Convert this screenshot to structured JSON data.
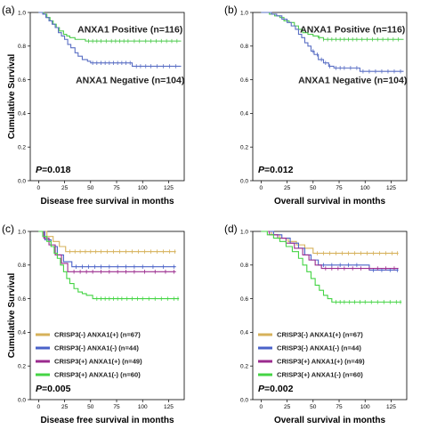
{
  "chart_data": [
    {
      "type": "line",
      "panel_label": "(a)",
      "xlabel": "Disease free survival in months",
      "ylabel": "Cumulative Survival",
      "xlim": [
        -8,
        140
      ],
      "ylim": [
        0,
        1.0
      ],
      "xticks": [
        "0",
        "25",
        "50",
        "75",
        "100",
        "125"
      ],
      "yticks": [
        "0.0",
        "0.2",
        "0.4",
        "0.6",
        "0.8",
        "1.0"
      ],
      "p_value": "=0.018",
      "legend_style": "inline",
      "series": [
        {
          "name": "ANXA1 Positive (n=116)",
          "color": "#4ecb4e",
          "x": [
            0,
            5,
            8,
            11,
            14,
            17,
            20,
            24,
            27,
            30,
            35,
            40,
            45,
            137
          ],
          "y": [
            1.0,
            0.99,
            0.97,
            0.95,
            0.93,
            0.91,
            0.89,
            0.87,
            0.86,
            0.85,
            0.84,
            0.84,
            0.83,
            0.83
          ],
          "censor": [
            48,
            52,
            56,
            60,
            65,
            70,
            74,
            78,
            82,
            86,
            92,
            97,
            103,
            108,
            113,
            118,
            123,
            128,
            133
          ]
        },
        {
          "name": "ANXA1 Negative (n=104)",
          "color": "#5a6fc4",
          "x": [
            0,
            4,
            7,
            10,
            13,
            16,
            19,
            22,
            25,
            28,
            31,
            35,
            38,
            42,
            47,
            50,
            90,
            137
          ],
          "y": [
            1.0,
            0.99,
            0.97,
            0.95,
            0.93,
            0.91,
            0.88,
            0.86,
            0.84,
            0.81,
            0.79,
            0.76,
            0.74,
            0.72,
            0.71,
            0.7,
            0.68,
            0.68
          ],
          "censor": [
            52,
            56,
            60,
            64,
            68,
            72,
            76,
            80,
            84,
            88,
            94,
            98,
            103,
            108,
            114,
            120,
            126,
            132
          ]
        }
      ]
    },
    {
      "type": "line",
      "panel_label": "(b)",
      "xlabel": "Overall survival in months",
      "ylabel": "",
      "xlim": [
        -8,
        140
      ],
      "ylim": [
        0,
        1.0
      ],
      "xticks": [
        "0",
        "25",
        "50",
        "75",
        "100",
        "125"
      ],
      "yticks": [
        "0.0",
        "0.2",
        "0.4",
        "0.6",
        "0.8",
        "1.0"
      ],
      "p_value": "=0.012",
      "legend_style": "inline",
      "series": [
        {
          "name": "ANXA1 Positive (n=116)",
          "color": "#4ecb4e",
          "x": [
            0,
            8,
            13,
            18,
            22,
            27,
            32,
            36,
            40,
            45,
            50,
            55,
            60,
            137
          ],
          "y": [
            1.0,
            0.99,
            0.98,
            0.97,
            0.95,
            0.94,
            0.92,
            0.9,
            0.88,
            0.87,
            0.86,
            0.85,
            0.84,
            0.84
          ],
          "censor": [
            56,
            60,
            64,
            68,
            72,
            76,
            80,
            84,
            88,
            92,
            97,
            102,
            107,
            112,
            117,
            122,
            127,
            132
          ]
        },
        {
          "name": "ANXA1 Negative (n=104)",
          "color": "#5a6fc4",
          "x": [
            0,
            10,
            15,
            20,
            25,
            29,
            33,
            36,
            39,
            42,
            45,
            48,
            51,
            55,
            60,
            65,
            70,
            95,
            137
          ],
          "y": [
            1.0,
            0.99,
            0.98,
            0.96,
            0.94,
            0.92,
            0.9,
            0.87,
            0.85,
            0.82,
            0.8,
            0.77,
            0.75,
            0.72,
            0.7,
            0.68,
            0.67,
            0.65,
            0.65
          ],
          "censor": [
            50,
            54,
            58,
            62,
            66,
            72,
            76,
            80,
            86,
            92,
            98,
            104,
            110,
            116,
            122,
            128,
            134
          ]
        }
      ]
    },
    {
      "type": "line",
      "panel_label": "(c)",
      "xlabel": "Disease free survival in months",
      "ylabel": "Cumulative Survival",
      "xlim": [
        -8,
        140
      ],
      "ylim": [
        0,
        1.0
      ],
      "xticks": [
        "0",
        "25",
        "50",
        "75",
        "100",
        "125"
      ],
      "yticks": [
        "0.0",
        "0.2",
        "0.4",
        "0.6",
        "0.8",
        "1.0"
      ],
      "p_value": "=0.005",
      "legend_style": "box",
      "series": [
        {
          "name": "CRISP3(-) ANXA1(+) (n=67)",
          "color": "#d6b15a",
          "x": [
            0,
            8,
            14,
            20,
            26,
            132
          ],
          "y": [
            1.0,
            0.97,
            0.94,
            0.91,
            0.88,
            0.88
          ],
          "censor": [
            30,
            35,
            40,
            45,
            50,
            55,
            60,
            66,
            72,
            78,
            84,
            90,
            96,
            102,
            108,
            114,
            120,
            126,
            131
          ]
        },
        {
          "name": "CRISP3(-) ANXA1(-) (n=44)",
          "color": "#4a62c8",
          "x": [
            0,
            6,
            12,
            18,
            24,
            32,
            132
          ],
          "y": [
            1.0,
            0.95,
            0.91,
            0.86,
            0.82,
            0.79,
            0.79
          ],
          "censor": [
            36,
            42,
            48,
            54,
            60,
            68,
            76,
            84,
            92,
            100,
            110,
            120,
            130
          ]
        },
        {
          "name": "CRISP3(+) ANXA1(+) (n=49)",
          "color": "#9b2b8e",
          "x": [
            0,
            5,
            10,
            16,
            22,
            28,
            132
          ],
          "y": [
            1.0,
            0.96,
            0.92,
            0.86,
            0.81,
            0.76,
            0.76
          ],
          "censor": [
            34,
            40,
            46,
            52,
            60,
            68,
            76,
            84,
            92,
            102,
            112,
            122,
            130
          ]
        },
        {
          "name": "CRISP3(+) ANXA1(-) (n=60)",
          "color": "#44d444",
          "x": [
            0,
            4,
            8,
            12,
            15,
            18,
            21,
            24,
            27,
            30,
            34,
            38,
            42,
            46,
            52,
            135
          ],
          "y": [
            1.0,
            0.97,
            0.94,
            0.91,
            0.87,
            0.84,
            0.8,
            0.76,
            0.72,
            0.69,
            0.66,
            0.64,
            0.63,
            0.62,
            0.6,
            0.6
          ],
          "censor": [
            56,
            60,
            64,
            68,
            72,
            76,
            80,
            85,
            90,
            95,
            100,
            106,
            112,
            118,
            124,
            130,
            134
          ]
        }
      ]
    },
    {
      "type": "line",
      "panel_label": "(d)",
      "xlabel": "Overall survival in months",
      "ylabel": "",
      "xlim": [
        -8,
        140
      ],
      "ylim": [
        0,
        1.0
      ],
      "xticks": [
        "0",
        "25",
        "50",
        "75",
        "100",
        "125"
      ],
      "yticks": [
        "0.0",
        "0.2",
        "0.4",
        "0.6",
        "0.8",
        "1.0"
      ],
      "p_value": "=0.002",
      "legend_style": "box",
      "series": [
        {
          "name": "CRISP3(-) ANXA1(+) (n=67)",
          "color": "#d6b15a",
          "x": [
            0,
            10,
            18,
            26,
            34,
            42,
            50,
            132
          ],
          "y": [
            1.0,
            0.98,
            0.96,
            0.94,
            0.92,
            0.9,
            0.87,
            0.87
          ],
          "censor": [
            54,
            60,
            66,
            72,
            78,
            84,
            90,
            96,
            102,
            108,
            114,
            120,
            126,
            131
          ]
        },
        {
          "name": "CRISP3(-) ANXA1(-) (n=44)",
          "color": "#4a62c8",
          "x": [
            0,
            12,
            20,
            28,
            36,
            42,
            48,
            55,
            100,
            104,
            132
          ],
          "y": [
            1.0,
            0.98,
            0.96,
            0.93,
            0.9,
            0.86,
            0.83,
            0.8,
            0.8,
            0.77,
            0.77
          ],
          "censor": [
            60,
            68,
            76,
            84,
            92,
            108,
            116,
            124,
            131
          ]
        },
        {
          "name": "CRISP3(+) ANXA1(+) (n=49)",
          "color": "#9b2b8e",
          "x": [
            0,
            8,
            16,
            24,
            32,
            40,
            46,
            52,
            58,
            132
          ],
          "y": [
            1.0,
            0.98,
            0.96,
            0.93,
            0.9,
            0.86,
            0.83,
            0.8,
            0.78,
            0.78
          ],
          "censor": [
            62,
            68,
            74,
            80,
            88,
            96,
            104,
            112,
            120,
            128
          ]
        },
        {
          "name": "CRISP3(+) ANXA1(-) (n=60)",
          "color": "#44d444",
          "x": [
            0,
            6,
            12,
            18,
            24,
            30,
            36,
            40,
            44,
            48,
            52,
            56,
            60,
            64,
            68,
            135
          ],
          "y": [
            1.0,
            0.98,
            0.96,
            0.94,
            0.91,
            0.88,
            0.84,
            0.8,
            0.76,
            0.72,
            0.68,
            0.65,
            0.62,
            0.6,
            0.58,
            0.58
          ],
          "censor": [
            72,
            76,
            80,
            85,
            90,
            95,
            100,
            106,
            112,
            118,
            124,
            130,
            134
          ]
        }
      ]
    }
  ]
}
